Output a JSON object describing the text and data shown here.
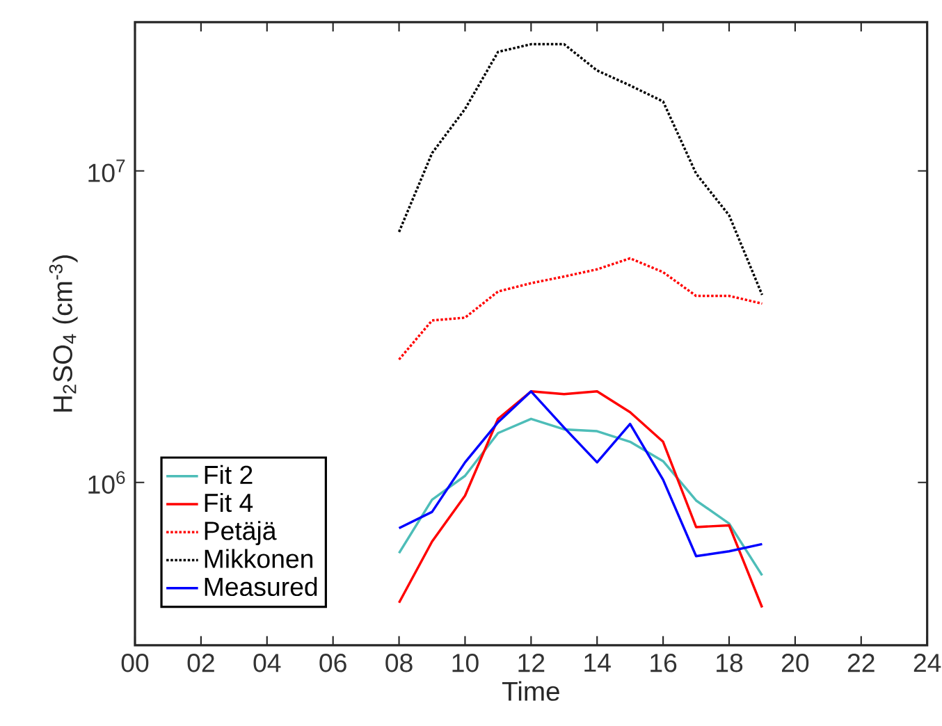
{
  "chart_data": {
    "type": "line",
    "xlabel": "Time",
    "ylabel": "H$_{2}$SO$_{4}$ (cm$^{-3}$)",
    "log": "y",
    "grid": false,
    "legend": "bottom left",
    "marker": "none",
    "xlim": [
      0,
      24
    ],
    "xticks": [
      {
        "value": 0,
        "label": "00"
      },
      {
        "value": 2,
        "label": "02"
      },
      {
        "value": 4,
        "label": "04"
      },
      {
        "value": 6,
        "label": "06"
      },
      {
        "value": 8,
        "label": "08"
      },
      {
        "value": 10,
        "label": "10"
      },
      {
        "value": 12,
        "label": "12"
      },
      {
        "value": 14,
        "label": "14"
      },
      {
        "value": 16,
        "label": "16"
      },
      {
        "value": 18,
        "label": "18"
      },
      {
        "value": 20,
        "label": "20"
      },
      {
        "value": 22,
        "label": "22"
      },
      {
        "value": 24,
        "label": "24"
      }
    ],
    "ylim": [
      300000,
      30000000
    ],
    "yticks": [
      {
        "value": 1000000,
        "label": "10$^{6}$"
      },
      {
        "value": 10000000,
        "label": "10$^{7}$"
      }
    ],
    "x": [
      8,
      9,
      10,
      11,
      12,
      13,
      14,
      15,
      16,
      17,
      18,
      19
    ],
    "series": [
      {
        "name": "Fit 2",
        "color": "#4dbdb8",
        "line_style": "solid",
        "values": [
          593000,
          880000,
          1050000,
          1440000,
          1600000,
          1480000,
          1460000,
          1350000,
          1170000,
          875000,
          738000,
          503000
        ]
      },
      {
        "name": "Fit 4",
        "color": "#ff0000",
        "line_style": "solid",
        "values": [
          411000,
          646000,
          907000,
          1600000,
          1960000,
          1920000,
          1960000,
          1680000,
          1350000,
          719000,
          728000,
          397000
        ]
      },
      {
        "name": "Petäjä",
        "color": "#ff0000",
        "line_style": "dotted",
        "values": [
          2480000,
          3310000,
          3380000,
          4100000,
          4360000,
          4580000,
          4830000,
          5240000,
          4730000,
          3970000,
          3970000,
          3750000
        ]
      },
      {
        "name": "Mikkonen",
        "color": "#000000",
        "line_style": "dotted",
        "values": [
          6370000,
          11400000,
          15800000,
          24100000,
          25500000,
          25500000,
          21000000,
          18800000,
          16700000,
          9800000,
          7200000,
          4000000
        ]
      },
      {
        "name": "Measured",
        "color": "#0000ff",
        "line_style": "solid",
        "values": [
          713000,
          804000,
          1160000,
          1560000,
          1960000,
          1500000,
          1160000,
          1540000,
          1020000,
          580000,
          601000,
          634000
        ]
      }
    ]
  }
}
